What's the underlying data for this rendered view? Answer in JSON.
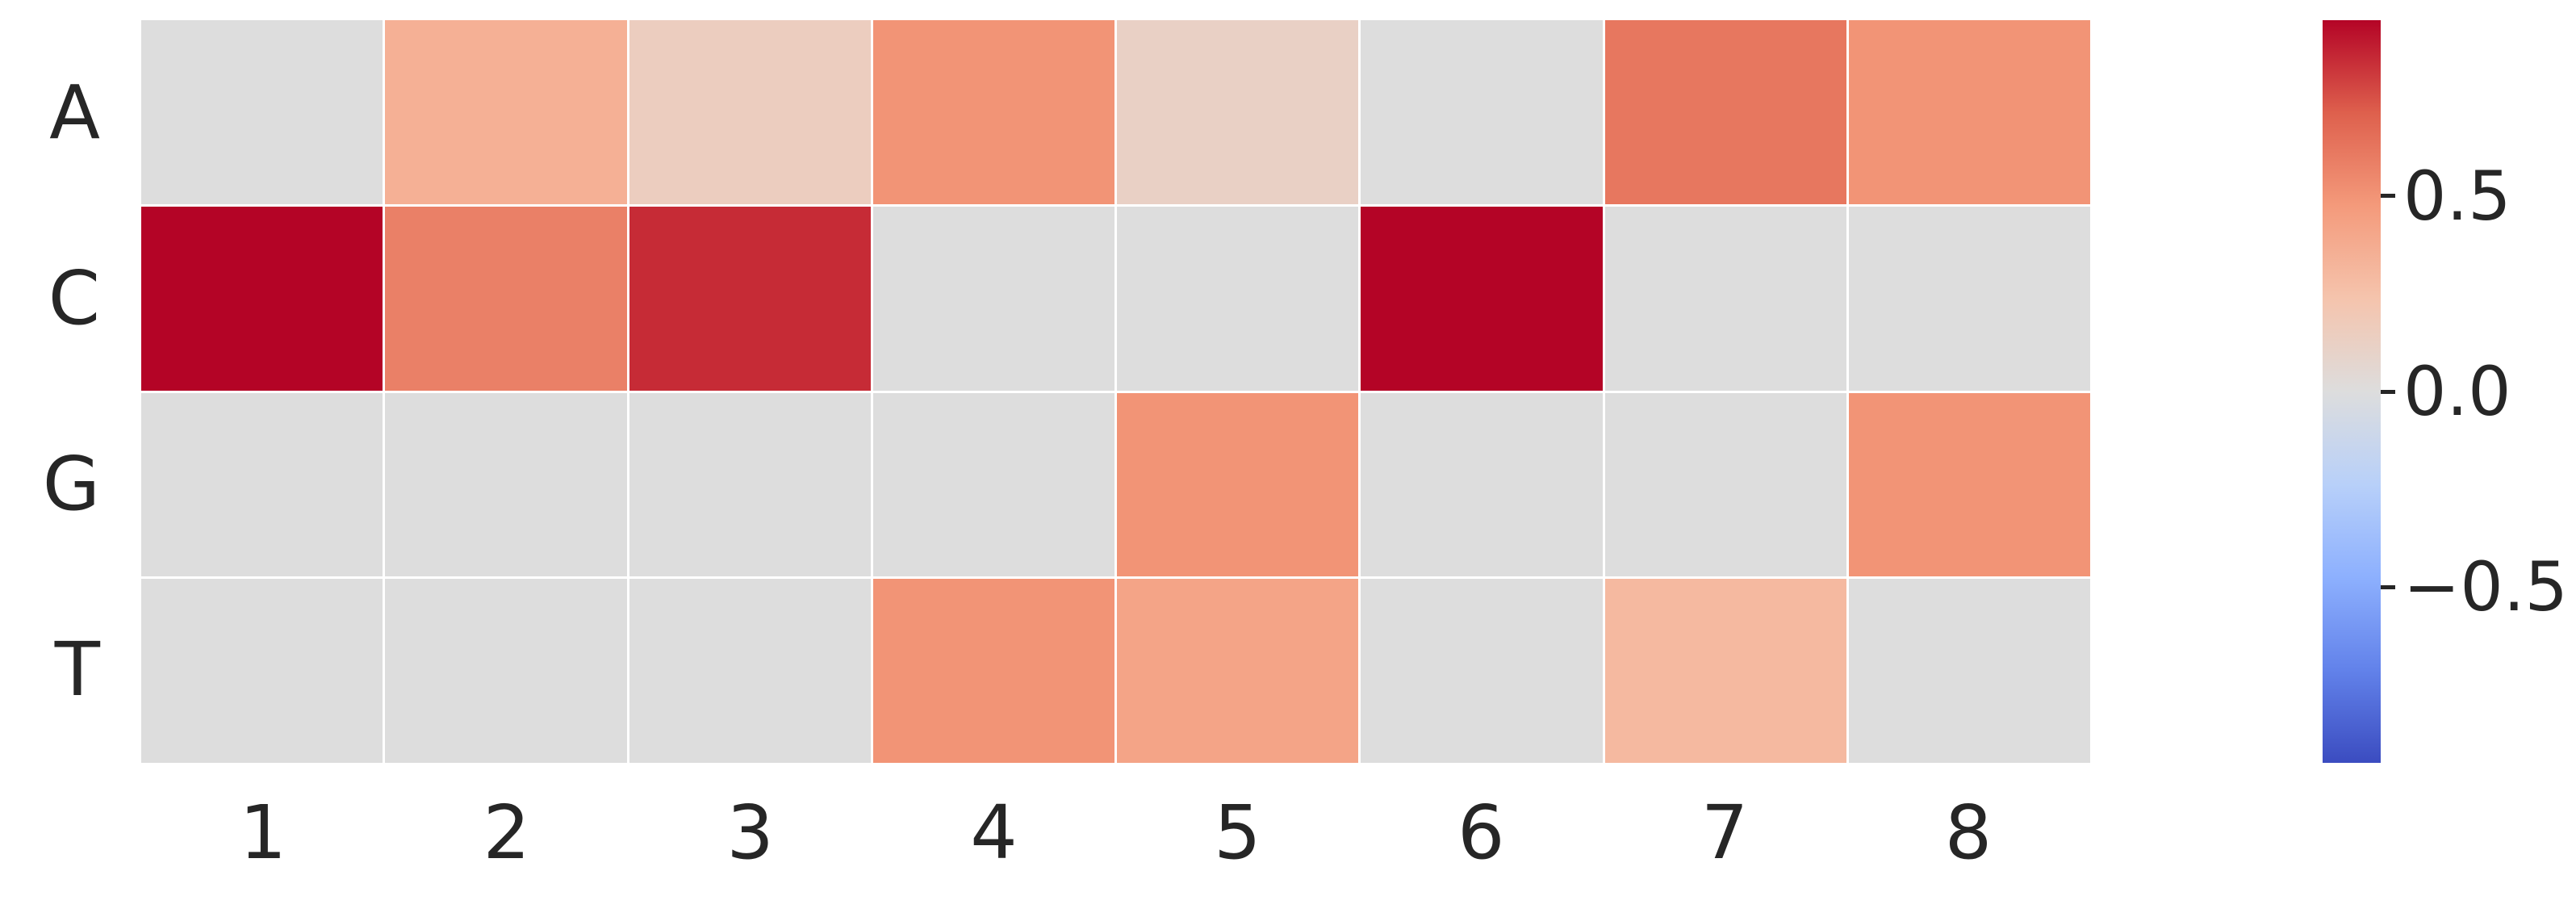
{
  "chart_data": {
    "type": "heatmap",
    "title": "",
    "xlabel": "",
    "ylabel": "",
    "rows": [
      "A",
      "C",
      "G",
      "T"
    ],
    "columns": [
      "1",
      "2",
      "3",
      "4",
      "5",
      "6",
      "7",
      "8"
    ],
    "values": [
      [
        0.0,
        0.35,
        0.15,
        0.5,
        0.12,
        0.0,
        0.62,
        0.5
      ],
      [
        0.95,
        0.58,
        0.85,
        0.0,
        0.0,
        0.95,
        0.0,
        0.0
      ],
      [
        0.0,
        0.0,
        0.0,
        0.0,
        0.5,
        0.0,
        0.0,
        0.5
      ],
      [
        0.0,
        0.0,
        0.0,
        0.5,
        0.42,
        0.0,
        0.3,
        0.0
      ]
    ],
    "vmin": -0.95,
    "vmax": 0.95,
    "grid": "off",
    "legend_position": "colorbar-right",
    "colormap": {
      "name": "coolwarm",
      "stops": [
        [
          0.0,
          "#3b4cc0"
        ],
        [
          0.125,
          "#6282ea"
        ],
        [
          0.25,
          "#8db0fe"
        ],
        [
          0.375,
          "#b8d0f9"
        ],
        [
          0.5,
          "#dddddd"
        ],
        [
          0.625,
          "#f5c4ad"
        ],
        [
          0.75,
          "#f49a7b"
        ],
        [
          0.875,
          "#de604d"
        ],
        [
          1.0,
          "#b40426"
        ]
      ]
    },
    "colorbar_ticks": [
      0.5,
      0.0,
      -0.5
    ],
    "colorbar_tick_labels": [
      "0.5",
      "0.0",
      "−0.5"
    ]
  },
  "colors": {
    "background": "#ffffff",
    "text": "#262626",
    "cell_divider": "#ffffff"
  }
}
